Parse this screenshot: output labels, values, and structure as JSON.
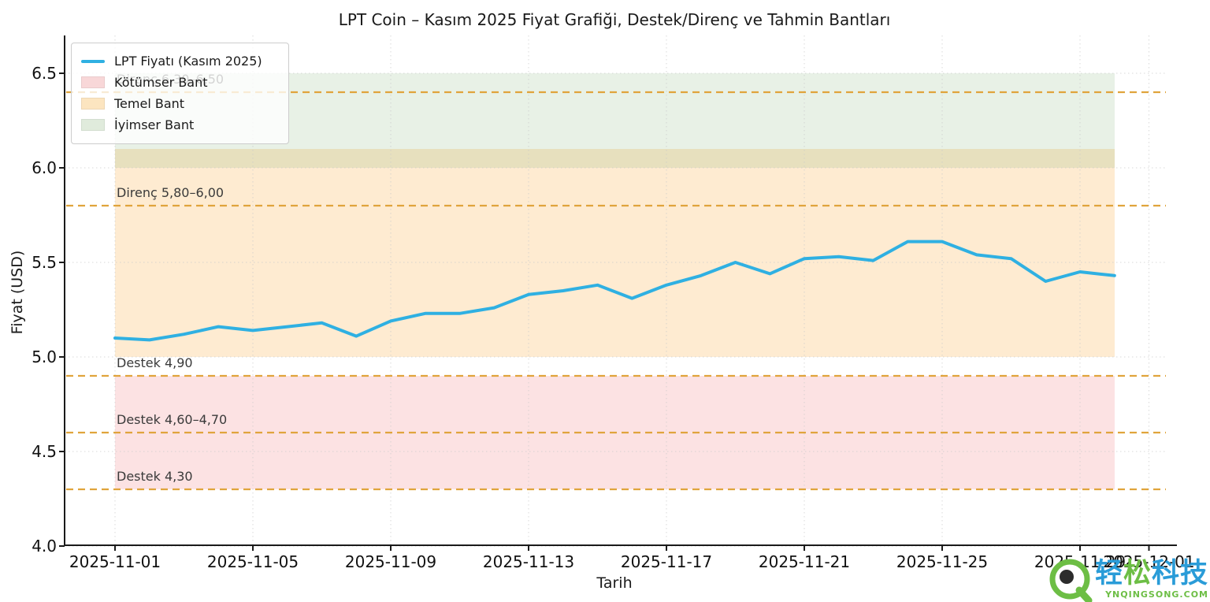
{
  "title": "LPT Coin – Kasım 2025 Fiyat Grafiği, Destek/Direnç ve Tahmin Bantları",
  "axes": {
    "xlabel": "Tarih",
    "ylabel": "Fiyat (USD)",
    "xticks": [
      "2025-11-01",
      "2025-11-05",
      "2025-11-09",
      "2025-11-13",
      "2025-11-17",
      "2025-11-21",
      "2025-11-25",
      "2025-11-29",
      "2025-12-01"
    ],
    "yticks": [
      "4.0",
      "4.5",
      "5.0",
      "5.5",
      "6.0",
      "6.5"
    ]
  },
  "legend": {
    "items": [
      {
        "label": "LPT Fiyatı (Kasım 2025)",
        "type": "line",
        "color": "#2fb0e2"
      },
      {
        "label": "Kötümser Bant",
        "type": "patch",
        "color": "#f8d7d8"
      },
      {
        "label": "Temel Bant",
        "type": "patch",
        "color": "#fce5c0"
      },
      {
        "label": "İyimser Bant",
        "type": "patch",
        "color": "#e0ebdc"
      }
    ]
  },
  "levels": [
    {
      "label": "Direnç 6,30–6,50",
      "value": 6.4
    },
    {
      "label": "Direnç 5,80–6,00",
      "value": 5.8
    },
    {
      "label": "Destek 4,90",
      "value": 4.9
    },
    {
      "label": "Destek 4,60–4,70",
      "value": 4.6
    },
    {
      "label": "Destek 4,30",
      "value": 4.3
    }
  ],
  "bands": [
    {
      "name": "Kötümser Bant",
      "from": 4.3,
      "to": 4.9,
      "fill": "rgba(240,95,100,0.18)"
    },
    {
      "name": "Temel Bant",
      "from": 5.0,
      "to": 6.1,
      "fill": "rgba(249,166,45,0.22)"
    },
    {
      "name": "İyimser Bant",
      "from": 6.0,
      "to": 6.5,
      "fill": "rgba(100,160,90,0.15)"
    }
  ],
  "chart_data": {
    "type": "line",
    "title": "LPT Coin – Kasım 2025 Fiyat Grafiği, Destek/Direnç ve Tahmin Bantları",
    "xlabel": "Tarih",
    "ylabel": "Fiyat (USD)",
    "ylim": [
      4.0,
      6.7
    ],
    "xlim": [
      "2025-10-31",
      "2025-12-02"
    ],
    "grid": true,
    "legend_position": "upper left",
    "line_color": "#2fb0e2",
    "level_line_color": "#e0a43c",
    "x": [
      "2025-11-01",
      "2025-11-02",
      "2025-11-03",
      "2025-11-04",
      "2025-11-05",
      "2025-11-06",
      "2025-11-07",
      "2025-11-08",
      "2025-11-09",
      "2025-11-10",
      "2025-11-11",
      "2025-11-12",
      "2025-11-13",
      "2025-11-14",
      "2025-11-15",
      "2025-11-16",
      "2025-11-17",
      "2025-11-18",
      "2025-11-19",
      "2025-11-20",
      "2025-11-21",
      "2025-11-22",
      "2025-11-23",
      "2025-11-24",
      "2025-11-25",
      "2025-11-26",
      "2025-11-27",
      "2025-11-28",
      "2025-11-29",
      "2025-11-30"
    ],
    "series": [
      {
        "name": "LPT Fiyatı (Kasım 2025)",
        "values": [
          5.1,
          5.09,
          5.12,
          5.16,
          5.14,
          5.16,
          5.18,
          5.11,
          5.19,
          5.23,
          5.23,
          5.26,
          5.33,
          5.35,
          5.38,
          5.31,
          5.38,
          5.43,
          5.5,
          5.44,
          5.52,
          5.53,
          5.51,
          5.61,
          5.61,
          5.54,
          5.52,
          5.4,
          5.45,
          5.43
        ]
      }
    ],
    "support_levels": [
      4.9,
      4.6,
      4.3
    ],
    "resistance_levels": [
      6.4,
      5.8
    ]
  },
  "watermark": {
    "brand_part1": "轻",
    "brand_part2": "松",
    "brand_part3": "科技",
    "site": "YNQINGSONG.COM",
    "blue": "#2a9cd8",
    "green": "#6dbe45"
  }
}
